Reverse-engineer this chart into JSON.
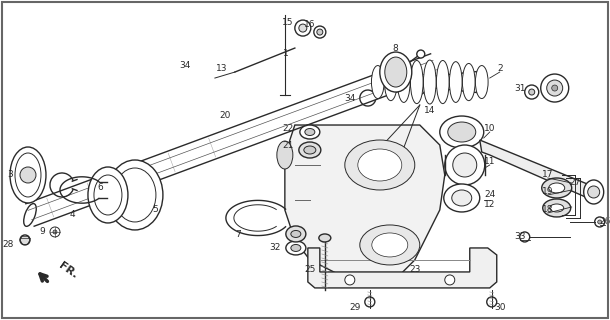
{
  "bg_color": "#ffffff",
  "line_color": "#2a2a2a",
  "fig_width": 6.1,
  "fig_height": 3.2,
  "dpi": 100
}
